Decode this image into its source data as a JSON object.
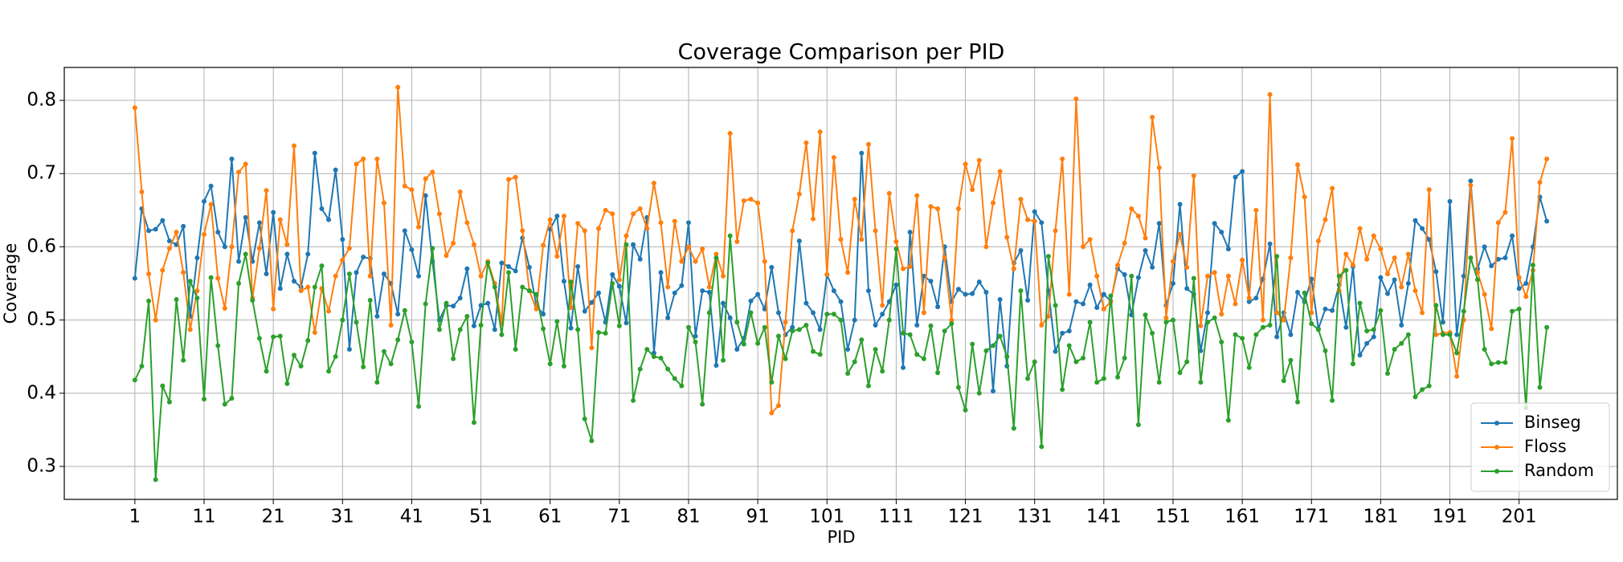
{
  "chart_data": {
    "type": "line",
    "title": "Coverage Comparison per PID",
    "xlabel": "PID",
    "ylabel": "Coverage",
    "x": [
      1,
      2,
      3,
      4,
      5,
      6,
      7,
      8,
      9,
      10,
      11,
      12,
      13,
      14,
      15,
      16,
      17,
      18,
      19,
      20,
      21,
      22,
      23,
      24,
      25,
      26,
      27,
      28,
      29,
      30,
      31,
      32,
      33,
      34,
      35,
      36,
      37,
      38,
      39,
      40,
      41,
      42,
      43,
      44,
      45,
      46,
      47,
      48,
      49,
      50,
      51,
      52,
      53,
      54,
      55,
      56,
      57,
      58,
      59,
      60,
      61,
      62,
      63,
      64,
      65,
      66,
      67,
      68,
      69,
      70,
      71,
      72,
      73,
      74,
      75,
      76,
      77,
      78,
      79,
      80,
      81,
      82,
      83,
      84,
      85,
      86,
      87,
      88,
      89,
      90,
      91,
      92,
      93,
      94,
      95,
      96,
      97,
      98,
      99,
      100,
      101,
      102,
      103,
      104,
      105,
      106,
      107,
      108,
      109,
      110,
      111,
      112,
      113,
      114,
      115,
      116,
      117,
      118,
      119,
      120,
      121,
      122,
      123,
      124,
      125,
      126,
      127,
      128,
      129,
      130,
      131,
      132,
      133,
      134,
      135,
      136,
      137,
      138,
      139,
      140,
      141,
      142,
      143,
      144,
      145,
      146,
      147,
      148,
      149,
      150,
      151,
      152,
      153,
      154,
      155,
      156,
      157,
      158,
      159,
      160,
      161,
      162,
      163,
      164,
      165,
      166,
      167,
      168,
      169,
      170,
      171,
      172,
      173,
      174,
      175,
      176,
      177,
      178,
      179,
      180,
      181,
      182,
      183,
      184,
      185,
      186,
      187,
      188,
      189,
      190,
      191,
      192,
      193,
      194,
      195,
      196,
      197,
      198,
      199,
      200,
      201,
      202,
      203,
      204,
      205
    ],
    "series": [
      {
        "name": "Binseg",
        "color": "#1f77b4",
        "values": [
          0.557,
          0.652,
          0.622,
          0.624,
          0.636,
          0.608,
          0.603,
          0.628,
          0.505,
          0.585,
          0.662,
          0.683,
          0.62,
          0.6,
          0.72,
          0.58,
          0.64,
          0.58,
          0.633,
          0.563,
          0.647,
          0.543,
          0.59,
          0.553,
          0.545,
          0.59,
          0.728,
          0.652,
          0.637,
          0.705,
          0.61,
          0.46,
          0.565,
          0.586,
          0.584,
          0.505,
          0.563,
          0.55,
          0.508,
          0.622,
          0.596,
          0.56,
          0.67,
          0.58,
          0.5,
          0.52,
          0.519,
          0.53,
          0.57,
          0.492,
          0.52,
          0.523,
          0.487,
          0.578,
          0.573,
          0.567,
          0.612,
          0.572,
          0.52,
          0.508,
          0.624,
          0.642,
          0.553,
          0.489,
          0.573,
          0.512,
          0.524,
          0.537,
          0.497,
          0.562,
          0.546,
          0.496,
          0.603,
          0.583,
          0.64,
          0.455,
          0.565,
          0.503,
          0.537,
          0.547,
          0.633,
          0.478,
          0.54,
          0.538,
          0.438,
          0.523,
          0.503,
          0.46,
          0.475,
          0.526,
          0.535,
          0.515,
          0.572,
          0.51,
          0.48,
          0.49,
          0.608,
          0.523,
          0.51,
          0.487,
          0.562,
          0.54,
          0.525,
          0.46,
          0.5,
          0.728,
          0.54,
          0.493,
          0.508,
          0.525,
          0.548,
          0.435,
          0.62,
          0.493,
          0.56,
          0.553,
          0.518,
          0.6,
          0.525,
          0.542,
          0.535,
          0.536,
          0.552,
          0.538,
          0.403,
          0.528,
          0.437,
          0.578,
          0.595,
          0.527,
          0.648,
          0.633,
          0.54,
          0.457,
          0.482,
          0.485,
          0.525,
          0.522,
          0.548,
          0.517,
          0.535,
          0.526,
          0.57,
          0.562,
          0.507,
          0.558,
          0.595,
          0.572,
          0.632,
          0.52,
          0.55,
          0.658,
          0.543,
          0.535,
          0.458,
          0.51,
          0.632,
          0.62,
          0.597,
          0.695,
          0.703,
          0.525,
          0.53,
          0.556,
          0.604,
          0.477,
          0.51,
          0.48,
          0.538,
          0.525,
          0.556,
          0.488,
          0.515,
          0.513,
          0.548,
          0.49,
          0.573,
          0.452,
          0.468,
          0.477,
          0.558,
          0.536,
          0.555,
          0.493,
          0.55,
          0.636,
          0.625,
          0.61,
          0.566,
          0.497,
          0.662,
          0.48,
          0.56,
          0.69,
          0.57,
          0.6,
          0.574,
          0.583,
          0.585,
          0.615,
          0.543,
          0.55,
          0.6,
          0.668,
          0.635
        ]
      },
      {
        "name": "Floss",
        "color": "#ff7f0e",
        "values": [
          0.79,
          0.675,
          0.563,
          0.5,
          0.568,
          0.598,
          0.62,
          0.565,
          0.487,
          0.54,
          0.617,
          0.658,
          0.557,
          0.516,
          0.6,
          0.702,
          0.713,
          0.53,
          0.598,
          0.677,
          0.515,
          0.637,
          0.603,
          0.738,
          0.54,
          0.545,
          0.483,
          0.543,
          0.512,
          0.56,
          0.582,
          0.598,
          0.713,
          0.72,
          0.56,
          0.72,
          0.66,
          0.493,
          0.818,
          0.683,
          0.678,
          0.627,
          0.693,
          0.702,
          0.645,
          0.588,
          0.605,
          0.675,
          0.633,
          0.603,
          0.56,
          0.58,
          0.55,
          0.495,
          0.692,
          0.695,
          0.622,
          0.54,
          0.515,
          0.602,
          0.637,
          0.587,
          0.642,
          0.517,
          0.632,
          0.622,
          0.462,
          0.625,
          0.65,
          0.645,
          0.555,
          0.615,
          0.645,
          0.652,
          0.625,
          0.687,
          0.633,
          0.545,
          0.635,
          0.58,
          0.6,
          0.58,
          0.597,
          0.545,
          0.59,
          0.56,
          0.755,
          0.607,
          0.663,
          0.665,
          0.66,
          0.58,
          0.373,
          0.383,
          0.497,
          0.622,
          0.672,
          0.742,
          0.638,
          0.757,
          0.562,
          0.722,
          0.61,
          0.565,
          0.665,
          0.61,
          0.74,
          0.622,
          0.52,
          0.673,
          0.607,
          0.57,
          0.573,
          0.67,
          0.51,
          0.655,
          0.652,
          0.585,
          0.5,
          0.652,
          0.713,
          0.678,
          0.718,
          0.6,
          0.66,
          0.703,
          0.613,
          0.57,
          0.665,
          0.637,
          0.635,
          0.493,
          0.505,
          0.622,
          0.72,
          0.535,
          0.802,
          0.6,
          0.61,
          0.56,
          0.515,
          0.525,
          0.575,
          0.605,
          0.652,
          0.642,
          0.612,
          0.777,
          0.708,
          0.503,
          0.58,
          0.617,
          0.572,
          0.697,
          0.492,
          0.56,
          0.565,
          0.508,
          0.56,
          0.522,
          0.582,
          0.53,
          0.65,
          0.5,
          0.808,
          0.51,
          0.5,
          0.585,
          0.712,
          0.668,
          0.51,
          0.608,
          0.637,
          0.68,
          0.54,
          0.59,
          0.575,
          0.625,
          0.583,
          0.615,
          0.597,
          0.563,
          0.585,
          0.545,
          0.59,
          0.54,
          0.51,
          0.678,
          0.48,
          0.482,
          0.483,
          0.423,
          0.5,
          0.684,
          0.565,
          0.535,
          0.488,
          0.633,
          0.647,
          0.748,
          0.558,
          0.532,
          0.568,
          0.688,
          0.72
        ]
      },
      {
        "name": "Random",
        "color": "#2ca02c",
        "values": [
          0.418,
          0.437,
          0.526,
          0.282,
          0.41,
          0.388,
          0.528,
          0.445,
          0.553,
          0.53,
          0.392,
          0.558,
          0.465,
          0.385,
          0.393,
          0.55,
          0.59,
          0.527,
          0.475,
          0.43,
          0.477,
          0.478,
          0.413,
          0.452,
          0.437,
          0.472,
          0.545,
          0.574,
          0.43,
          0.45,
          0.5,
          0.563,
          0.497,
          0.436,
          0.527,
          0.415,
          0.457,
          0.44,
          0.473,
          0.513,
          0.47,
          0.382,
          0.522,
          0.598,
          0.487,
          0.523,
          0.447,
          0.487,
          0.505,
          0.36,
          0.493,
          0.578,
          0.545,
          0.48,
          0.565,
          0.46,
          0.545,
          0.54,
          0.535,
          0.488,
          0.44,
          0.498,
          0.437,
          0.552,
          0.487,
          0.365,
          0.335,
          0.483,
          0.482,
          0.55,
          0.492,
          0.603,
          0.39,
          0.433,
          0.46,
          0.45,
          0.448,
          0.433,
          0.42,
          0.41,
          0.49,
          0.47,
          0.385,
          0.51,
          0.585,
          0.445,
          0.615,
          0.497,
          0.467,
          0.51,
          0.468,
          0.49,
          0.415,
          0.478,
          0.447,
          0.485,
          0.487,
          0.493,
          0.457,
          0.453,
          0.508,
          0.508,
          0.5,
          0.427,
          0.443,
          0.473,
          0.41,
          0.46,
          0.43,
          0.5,
          0.597,
          0.482,
          0.48,
          0.453,
          0.447,
          0.492,
          0.428,
          0.485,
          0.495,
          0.408,
          0.377,
          0.467,
          0.4,
          0.458,
          0.465,
          0.478,
          0.45,
          0.352,
          0.54,
          0.42,
          0.443,
          0.327,
          0.587,
          0.52,
          0.405,
          0.465,
          0.443,
          0.448,
          0.497,
          0.415,
          0.42,
          0.533,
          0.422,
          0.448,
          0.56,
          0.357,
          0.507,
          0.482,
          0.415,
          0.497,
          0.5,
          0.428,
          0.443,
          0.557,
          0.415,
          0.497,
          0.503,
          0.47,
          0.363,
          0.48,
          0.475,
          0.435,
          0.48,
          0.49,
          0.493,
          0.587,
          0.417,
          0.445,
          0.388,
          0.537,
          0.495,
          0.487,
          0.458,
          0.39,
          0.56,
          0.568,
          0.44,
          0.523,
          0.485,
          0.487,
          0.513,
          0.427,
          0.46,
          0.468,
          0.48,
          0.395,
          0.405,
          0.41,
          0.52,
          0.48,
          0.48,
          0.455,
          0.512,
          0.585,
          0.555,
          0.46,
          0.44,
          0.442,
          0.442,
          0.512,
          0.515,
          0.38,
          0.575,
          0.408,
          0.49
        ]
      }
    ],
    "xlim": [
      -9.2,
      215.2
    ],
    "xticks": [
      1,
      11,
      21,
      31,
      41,
      51,
      61,
      71,
      81,
      91,
      101,
      111,
      121,
      131,
      141,
      151,
      161,
      171,
      181,
      191,
      201
    ],
    "ylim": [
      0.255,
      0.845
    ],
    "yticks": [
      0.3,
      0.4,
      0.5,
      0.6,
      0.7,
      0.8
    ],
    "grid": true,
    "legend": "lower right"
  }
}
